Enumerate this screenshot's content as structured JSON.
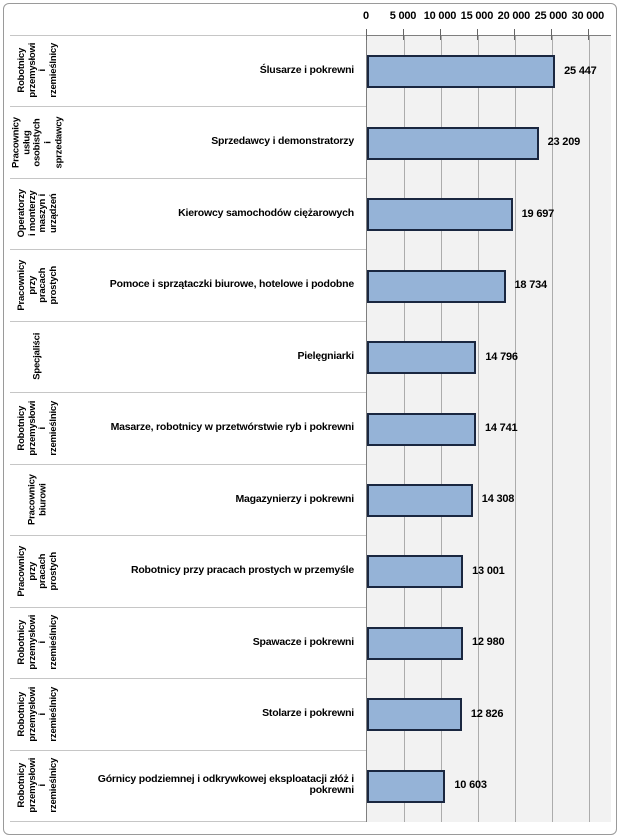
{
  "chart_data": {
    "type": "bar",
    "orientation": "horizontal",
    "title": "",
    "xlabel": "",
    "ylabel": "",
    "axis": {
      "tick_values": [
        0,
        5000,
        10000,
        15000,
        20000,
        25000,
        30000
      ],
      "tick_labels": [
        "0",
        "5 000",
        "10 000",
        "15 000",
        "20 000",
        "25 000",
        "30 000"
      ],
      "min": 0,
      "max_display": 33000,
      "grid": true,
      "axis_position": "top"
    },
    "rows": [
      {
        "group": "Robotnicy przemysłowi i rzemieślnicy",
        "occupation": "Ślusarze i pokrewni",
        "value": 25447,
        "value_label": "25 447"
      },
      {
        "group": "Pracownicy usług osobistych i sprzedawcy",
        "occupation": "Sprzedawcy i demonstratorzy",
        "value": 23209,
        "value_label": "23 209"
      },
      {
        "group": "Operatorzy i monterzy maszyn i urządzeń",
        "occupation": "Kierowcy samochodów ciężarowych",
        "value": 19697,
        "value_label": "19 697"
      },
      {
        "group": "Pracownicy przy pracach prostych",
        "occupation": "Pomoce i sprzątaczki biurowe, hotelowe i podobne",
        "value": 18734,
        "value_label": "18 734"
      },
      {
        "group": "Specjaliści",
        "occupation": "Pielęgniarki",
        "value": 14796,
        "value_label": "14 796"
      },
      {
        "group": "Robotnicy przemysłowi i rzemieślnicy",
        "occupation": "Masarze, robotnicy w przetwórstwie ryb i pokrewni",
        "value": 14741,
        "value_label": "14 741"
      },
      {
        "group": "Pracownicy biurowi",
        "occupation": "Magazynierzy i pokrewni",
        "value": 14308,
        "value_label": "14 308"
      },
      {
        "group": "Pracownicy przy pracach prostych",
        "occupation": "Robotnicy przy pracach prostych w przemyśle",
        "value": 13001,
        "value_label": "13 001"
      },
      {
        "group": "Robotnicy przemysłowi i rzemieślnicy",
        "occupation": "Spawacze i pokrewni",
        "value": 12980,
        "value_label": "12 980"
      },
      {
        "group": "Robotnicy przemysłowi i rzemieślnicy",
        "occupation": "Stolarze i pokrewni",
        "value": 12826,
        "value_label": "12 826"
      },
      {
        "group": "Robotnicy przemysłowi i rzemieślnicy",
        "occupation": "Górnicy podziemnej i odkrywkowej eksploatacji złóż i pokrewni",
        "value": 10603,
        "value_label": "10 603"
      }
    ]
  },
  "colors": {
    "bar_fill": "#95B3D7",
    "bar_border": "#1A2740",
    "plot_bg": "#F2F2F2",
    "gridline": "#ACACAC",
    "tick": "#666666",
    "separator": "#C6C6C6",
    "frame_border": "#9A9A9A",
    "axis_line": "#7F7F7F",
    "text": "#000000"
  }
}
